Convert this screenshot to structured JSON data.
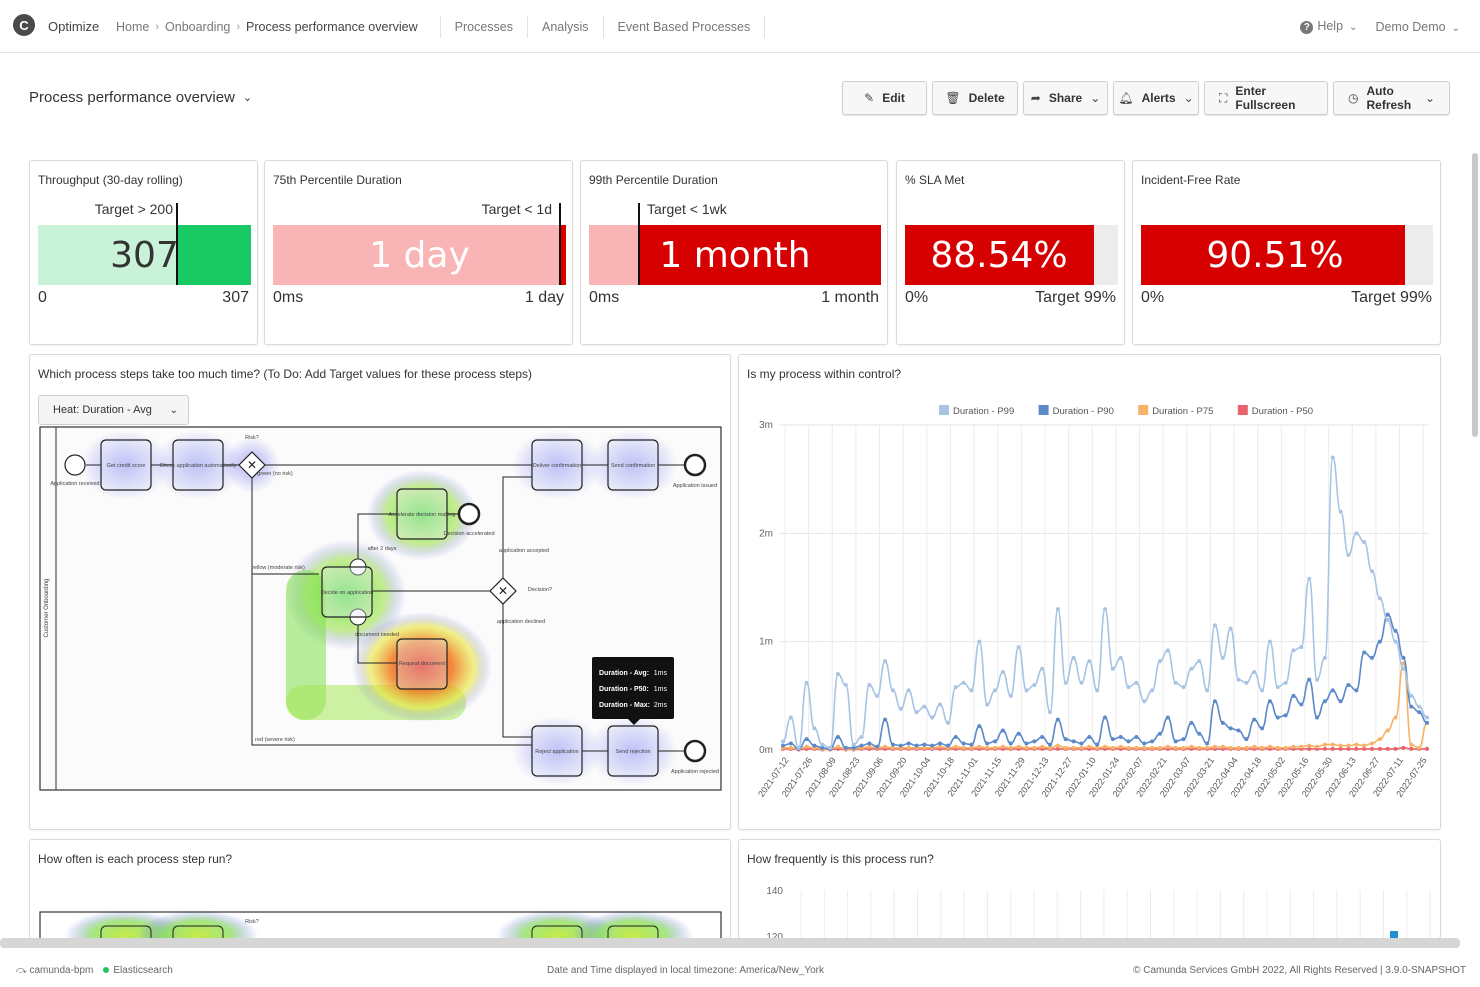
{
  "header": {
    "app_name": "Optimize",
    "logo_letter": "C",
    "breadcrumbs": [
      "Home",
      "Onboarding",
      "Process performance overview"
    ],
    "nav": [
      "Processes",
      "Analysis",
      "Event Based Processes"
    ],
    "help": "Help",
    "user": "Demo Demo"
  },
  "dashboard": {
    "title": "Process performance overview",
    "buttons": {
      "edit": "Edit",
      "delete": "Delete",
      "share": "Share",
      "alerts": "Alerts",
      "fullscreen": "Enter Fullscreen",
      "auto_refresh": "Auto Refresh"
    }
  },
  "kpis": [
    {
      "title": "Throughput (30-day rolling)",
      "value": "307",
      "target": "Target > 200",
      "min": "0",
      "max": "307",
      "progress": 1.0,
      "target_fraction": 0.65,
      "color": "#18c964",
      "light": "#c9f3d9"
    },
    {
      "title": "75th Percentile Duration",
      "value": "1 day",
      "target": "Target < 1d",
      "min": "0ms",
      "max": "1 day",
      "progress": 1.0,
      "target_fraction": 0.98,
      "color": "#d60000",
      "light": "#f9b5b5"
    },
    {
      "title": "99th Percentile Duration",
      "value": "1 month",
      "target": "Target < 1wk",
      "min": "0ms",
      "max": "1 month",
      "progress": 1.0,
      "target_fraction": 0.17,
      "color": "#d60000",
      "light": "#f9b5b5"
    },
    {
      "title": "% SLA Met",
      "value": "88.54%",
      "target": "Target 99%",
      "min": "0%",
      "progress": 0.8854,
      "color": "#d60000"
    },
    {
      "title": "Incident-Free Rate",
      "value": "90.51%",
      "target": "Target 99%",
      "min": "0%",
      "progress": 0.9051,
      "color": "#d60000"
    }
  ],
  "heatmap_panel": {
    "title": "Which process steps take too much time? (To Do: Add Target values for these process steps)",
    "select_value": "Heat: Duration - Avg",
    "lane_label": "Customer Onboarding",
    "nodes": {
      "start": "Application received",
      "credit": "Get credit score",
      "check": "Check application automatically",
      "risk": "Risk?",
      "green": "green (no risk)",
      "yellow": "yellow (moderate risk)",
      "red": "red (severe risk)",
      "deliver": "Deliver confirmation",
      "send_conf": "Send confirmation",
      "issued": "Application issued",
      "accelerate": "Accelerate decision making",
      "accelerated": "Decision accelerated",
      "after2": "after 2 days",
      "decide": "Decide on application",
      "decision": "Decision?",
      "accepted": "application accepted",
      "declined": "application declined",
      "doc_needed": "document needed",
      "request": "Request document",
      "reject": "Reject application",
      "send_rej": "Send rejection",
      "rejected": "Application rejected"
    },
    "tooltip": [
      {
        "label": "Duration - Avg:",
        "value": "1ms"
      },
      {
        "label": "Duration - P50:",
        "value": "1ms"
      },
      {
        "label": "Duration - Max:",
        "value": "2ms"
      }
    ]
  },
  "control_panel": {
    "title": "Is my process within control?"
  },
  "chart_data": {
    "type": "line",
    "title": "",
    "ylabel": "",
    "y_tick_labels": [
      "0m",
      "1m",
      "2m",
      "3m"
    ],
    "ylim": [
      0,
      3
    ],
    "x_tick_labels": [
      "2021-07-12",
      "2021-07-26",
      "2021-08-09",
      "2021-08-23",
      "2021-09-06",
      "2021-09-20",
      "2021-10-04",
      "2021-10-18",
      "2021-11-01",
      "2021-11-15",
      "2021-11-29",
      "2021-12-13",
      "2021-12-27",
      "2022-01-10",
      "2022-01-24",
      "2022-02-07",
      "2022-02-21",
      "2022-03-07",
      "2022-03-21",
      "2022-04-04",
      "2022-04-18",
      "2022-05-02",
      "2022-05-16",
      "2022-05-30",
      "2022-06-13",
      "2022-06-27",
      "2022-07-11",
      "2022-07-25"
    ],
    "legend_position": "top",
    "series": [
      {
        "name": "Duration - P99",
        "color": "#a8c4e4",
        "values": [
          0.08,
          0.3,
          0.02,
          0.62,
          0.2,
          0.05,
          0.02,
          0.7,
          0.6,
          0.05,
          0.12,
          0.6,
          0.5,
          0.82,
          0.55,
          0.38,
          0.55,
          0.35,
          0.4,
          0.3,
          0.42,
          0.25,
          0.58,
          0.62,
          0.55,
          1.0,
          0.42,
          0.55,
          0.72,
          0.5,
          0.95,
          0.55,
          0.6,
          0.75,
          0.35,
          1.3,
          0.62,
          0.85,
          0.62,
          0.82,
          0.55,
          1.3,
          0.75,
          0.85,
          0.58,
          0.62,
          0.45,
          0.55,
          0.82,
          0.92,
          0.62,
          0.58,
          0.75,
          0.82,
          0.55,
          1.15,
          0.85,
          1.12,
          0.65,
          0.62,
          0.72,
          0.55,
          1.0,
          0.58,
          0.62,
          0.92,
          0.95,
          1.58,
          0.65,
          0.85,
          2.7,
          2.2,
          1.8,
          2.0,
          1.92,
          1.65,
          1.4,
          1.2,
          1.0,
          0.75,
          0.5,
          0.4,
          0.3
        ]
      },
      {
        "name": "Duration - P90",
        "color": "#5b89c9",
        "values": [
          0.04,
          0.06,
          0.01,
          0.1,
          0.04,
          0.02,
          0.01,
          0.12,
          0.02,
          0.02,
          0.04,
          0.06,
          0.03,
          0.28,
          0.05,
          0.04,
          0.06,
          0.04,
          0.05,
          0.04,
          0.06,
          0.04,
          0.12,
          0.06,
          0.05,
          0.22,
          0.06,
          0.08,
          0.18,
          0.06,
          0.15,
          0.06,
          0.08,
          0.12,
          0.05,
          0.28,
          0.1,
          0.08,
          0.06,
          0.12,
          0.05,
          0.3,
          0.1,
          0.12,
          0.08,
          0.12,
          0.06,
          0.08,
          0.15,
          0.3,
          0.08,
          0.1,
          0.25,
          0.15,
          0.06,
          0.45,
          0.25,
          0.2,
          0.18,
          0.1,
          0.28,
          0.2,
          0.45,
          0.3,
          0.32,
          0.5,
          0.42,
          0.65,
          0.3,
          0.45,
          0.55,
          0.45,
          0.6,
          0.55,
          0.9,
          0.85,
          1.0,
          1.25,
          1.1,
          0.85,
          0.4,
          0.35,
          0.25
        ]
      },
      {
        "name": "Duration - P75",
        "color": "#f7b267",
        "values": [
          0.02,
          0.02,
          0.01,
          0.03,
          0.02,
          0.01,
          0.01,
          0.03,
          0.01,
          0.01,
          0.02,
          0.03,
          0.02,
          0.03,
          0.02,
          0.02,
          0.02,
          0.02,
          0.02,
          0.02,
          0.03,
          0.02,
          0.03,
          0.02,
          0.02,
          0.03,
          0.02,
          0.02,
          0.03,
          0.02,
          0.03,
          0.02,
          0.02,
          0.03,
          0.02,
          0.04,
          0.02,
          0.02,
          0.02,
          0.03,
          0.02,
          0.03,
          0.02,
          0.03,
          0.02,
          0.02,
          0.02,
          0.02,
          0.02,
          0.03,
          0.02,
          0.02,
          0.03,
          0.02,
          0.02,
          0.03,
          0.03,
          0.02,
          0.02,
          0.02,
          0.03,
          0.02,
          0.03,
          0.02,
          0.02,
          0.03,
          0.03,
          0.04,
          0.03,
          0.05,
          0.05,
          0.04,
          0.04,
          0.05,
          0.04,
          0.06,
          0.1,
          0.18,
          0.3,
          0.8,
          0.05,
          0.02,
          0.25
        ]
      },
      {
        "name": "Duration - P50",
        "color": "#e8636b",
        "values": [
          0.01,
          0.01,
          0.005,
          0.01,
          0.01,
          0.005,
          0.005,
          0.01,
          0.005,
          0.005,
          0.01,
          0.01,
          0.01,
          0.01,
          0.01,
          0.01,
          0.01,
          0.01,
          0.01,
          0.01,
          0.01,
          0.01,
          0.01,
          0.01,
          0.01,
          0.01,
          0.01,
          0.01,
          0.01,
          0.01,
          0.01,
          0.01,
          0.01,
          0.01,
          0.01,
          0.01,
          0.01,
          0.01,
          0.01,
          0.01,
          0.01,
          0.01,
          0.01,
          0.01,
          0.01,
          0.01,
          0.01,
          0.01,
          0.01,
          0.01,
          0.01,
          0.01,
          0.01,
          0.01,
          0.01,
          0.01,
          0.01,
          0.01,
          0.01,
          0.01,
          0.01,
          0.01,
          0.01,
          0.01,
          0.01,
          0.01,
          0.01,
          0.01,
          0.01,
          0.01,
          0.01,
          0.01,
          0.01,
          0.01,
          0.01,
          0.01,
          0.01,
          0.01,
          0.01,
          0.02,
          0.01,
          0.01,
          0.01
        ]
      }
    ]
  },
  "bottom_left": {
    "title": "How often is each process step run?",
    "risk_label": "Risk?"
  },
  "bottom_right": {
    "title": "How frequently is this process run?",
    "y_ticks": [
      "140",
      "120"
    ]
  },
  "footer": {
    "engine": "camunda-bpm",
    "es": "Elasticsearch",
    "timezone": "Date and Time displayed in local timezone: America/New_York",
    "copyright": "© Camunda Services GmbH 2022, All Rights Reserved | 3.9.0-SNAPSHOT"
  }
}
